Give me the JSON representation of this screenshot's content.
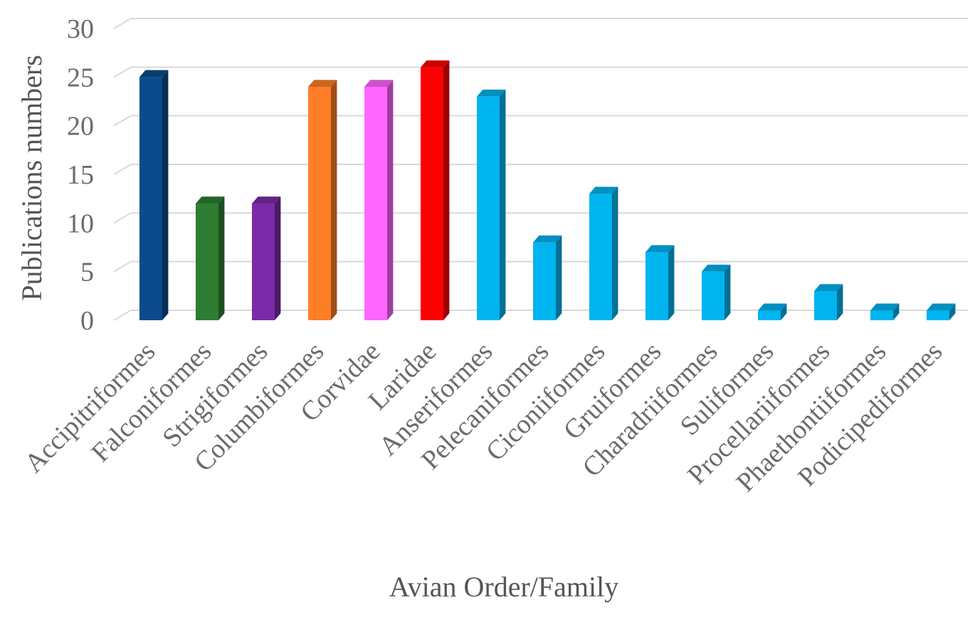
{
  "chart_data": {
    "type": "bar",
    "title": "",
    "xlabel": "Avian Order/Family",
    "ylabel": "Publications numbers",
    "ylim": [
      0,
      30
    ],
    "yticks": [
      0,
      5,
      10,
      15,
      20,
      25,
      30
    ],
    "grid": true,
    "legend": "none",
    "style": "3d-column",
    "categories": [
      "Accipitriformes",
      "Falconiformes",
      "Strigiformes",
      "Columbiformes",
      "Corvidae",
      "Laridae",
      "Anseriformes",
      "Pelecaniformes",
      "Ciconiiformes",
      "Gruiformes",
      "Charadriiformes",
      "Suliformes",
      "Procellariiformes",
      "Phaethontiiformes",
      "Podicipediformes"
    ],
    "values": [
      25,
      12,
      12,
      24,
      24,
      26,
      23,
      8,
      13,
      7,
      5,
      1,
      3,
      1,
      1
    ],
    "colors": [
      "#0b4a8b",
      "#2e7d32",
      "#7b2aa8",
      "#ff7f27",
      "#ff66ff",
      "#ff0000",
      "#00b4f0",
      "#00b4f0",
      "#00b4f0",
      "#00b4f0",
      "#00b4f0",
      "#00b4f0",
      "#00b4f0",
      "#00b4f0",
      "#00b4f0"
    ],
    "grid_color": "#d9d9d9"
  }
}
